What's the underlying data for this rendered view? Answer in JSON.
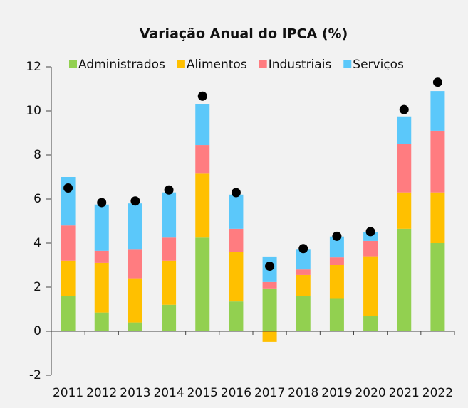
{
  "chart_data": {
    "type": "stacked_bar",
    "title": "Variação Anual do IPCA (%)",
    "categories": [
      "2011",
      "2012",
      "2013",
      "2014",
      "2015",
      "2016",
      "2017",
      "2018",
      "2019",
      "2020",
      "2021",
      "2022"
    ],
    "series": [
      {
        "name": "Administrados",
        "color": "#92d050",
        "values": [
          1.6,
          0.85,
          0.4,
          1.2,
          4.25,
          1.35,
          1.94,
          1.6,
          1.5,
          0.7,
          4.65,
          4.0
        ]
      },
      {
        "name": "Alimentos",
        "color": "#ffc000",
        "values": [
          1.6,
          2.25,
          2.0,
          2.0,
          2.9,
          2.25,
          -0.48,
          0.95,
          1.5,
          2.7,
          1.65,
          2.3
        ]
      },
      {
        "name": "Industriais",
        "color": "#ff7c80",
        "values": [
          1.6,
          0.55,
          1.3,
          1.05,
          1.3,
          1.05,
          0.29,
          0.25,
          0.35,
          0.7,
          2.2,
          2.8
        ]
      },
      {
        "name": "Serviços",
        "color": "#5bc8fa",
        "values": [
          2.2,
          2.1,
          2.1,
          2.05,
          1.85,
          1.55,
          1.16,
          0.9,
          0.95,
          0.4,
          1.25,
          1.8
        ]
      }
    ],
    "markers": {
      "color": "#000000",
      "values": [
        6.5,
        5.84,
        5.91,
        6.41,
        10.67,
        6.29,
        2.95,
        3.75,
        4.31,
        4.52,
        10.06,
        11.3
      ]
    },
    "ylim": [
      -2,
      12
    ],
    "yticks": [
      -2,
      0,
      2,
      4,
      6,
      8,
      10,
      12
    ]
  }
}
